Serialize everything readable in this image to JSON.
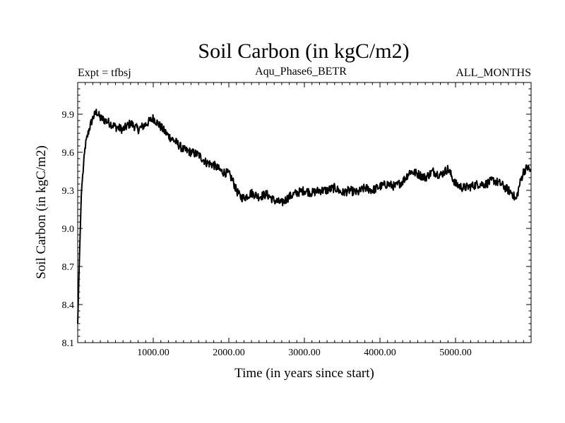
{
  "chart_data": {
    "type": "line",
    "title": "Soil Carbon (in kgC/m2)",
    "subtitle_left": "Expt = tfbsj",
    "subtitle_center": "Aqu_Phase6_BETR",
    "subtitle_right": "ALL_MONTHS",
    "xlabel": "Time (in years since start)",
    "ylabel": "Soil Carbon (in kgC/m2)",
    "xlim": [
      0,
      6000
    ],
    "ylim": [
      8.1,
      10.15
    ],
    "xticks": [
      1000,
      2000,
      3000,
      4000,
      5000
    ],
    "xtick_labels": [
      "1000.00",
      "2000.00",
      "3000.00",
      "4000.00",
      "5000.00"
    ],
    "yticks": [
      8.1,
      8.4,
      8.7,
      9.0,
      9.3,
      9.6,
      9.9
    ],
    "ytick_labels": [
      "8.1",
      "8.4",
      "8.7",
      "9.0",
      "9.3",
      "9.6",
      "9.9"
    ],
    "series": [
      {
        "name": "Soil Carbon",
        "color": "#000000",
        "x": [
          0,
          20,
          50,
          100,
          150,
          200,
          250,
          300,
          400,
          500,
          600,
          700,
          800,
          900,
          1000,
          1100,
          1200,
          1300,
          1400,
          1500,
          1600,
          1700,
          1800,
          1900,
          2000,
          2050,
          2100,
          2150,
          2200,
          2300,
          2400,
          2500,
          2600,
          2700,
          2800,
          2900,
          3000,
          3100,
          3200,
          3300,
          3400,
          3500,
          3600,
          3700,
          3800,
          3900,
          4000,
          4100,
          4200,
          4300,
          4400,
          4500,
          4600,
          4700,
          4800,
          4900,
          5000,
          5100,
          5200,
          5300,
          5400,
          5500,
          5600,
          5700,
          5750,
          5800,
          5850,
          5900,
          5950,
          6000
        ],
        "values": [
          8.25,
          8.7,
          9.3,
          9.65,
          9.78,
          9.87,
          9.92,
          9.87,
          9.84,
          9.8,
          9.78,
          9.83,
          9.78,
          9.82,
          9.87,
          9.8,
          9.73,
          9.68,
          9.62,
          9.6,
          9.58,
          9.52,
          9.5,
          9.45,
          9.43,
          9.38,
          9.3,
          9.25,
          9.24,
          9.28,
          9.25,
          9.27,
          9.22,
          9.2,
          9.25,
          9.28,
          9.3,
          9.28,
          9.3,
          9.3,
          9.32,
          9.28,
          9.3,
          9.28,
          9.32,
          9.3,
          9.33,
          9.35,
          9.33,
          9.37,
          9.45,
          9.43,
          9.4,
          9.45,
          9.42,
          9.47,
          9.35,
          9.32,
          9.33,
          9.35,
          9.35,
          9.38,
          9.35,
          9.3,
          9.28,
          9.22,
          9.35,
          9.45,
          9.48,
          9.45
        ]
      }
    ]
  }
}
